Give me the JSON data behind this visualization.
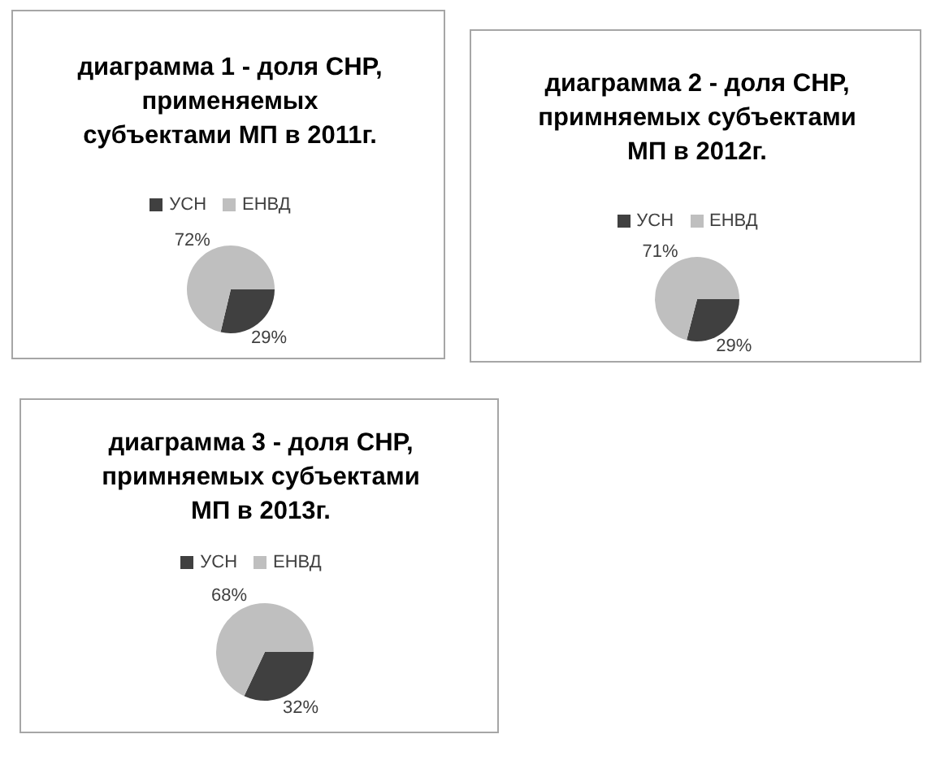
{
  "chart_data": [
    {
      "type": "pie",
      "title": "диаграмма 1 - доля СНР, применяемых субъектами МП в 2011г.",
      "categories": [
        "УСН",
        "ЕНВД"
      ],
      "values": [
        29,
        72
      ],
      "value_labels": [
        "29%",
        "72%"
      ],
      "colors": [
        "#404040",
        "#bfbfbf"
      ],
      "legend": "top"
    },
    {
      "type": "pie",
      "title": "диаграмма 2 - доля СНР, примняемых субъектами МП в 2012г.",
      "categories": [
        "УСН",
        "ЕНВД"
      ],
      "values": [
        29,
        71
      ],
      "value_labels": [
        "29%",
        "71%"
      ],
      "colors": [
        "#404040",
        "#bfbfbf"
      ],
      "legend": "top"
    },
    {
      "type": "pie",
      "title": "диаграмма 3 - доля СНР, примняемых субъектами МП в 2013г.",
      "categories": [
        "УСН",
        "ЕНВД"
      ],
      "values": [
        32,
        68
      ],
      "value_labels": [
        "32%",
        "68%"
      ],
      "colors": [
        "#404040",
        "#bfbfbf"
      ],
      "legend": "top"
    }
  ]
}
